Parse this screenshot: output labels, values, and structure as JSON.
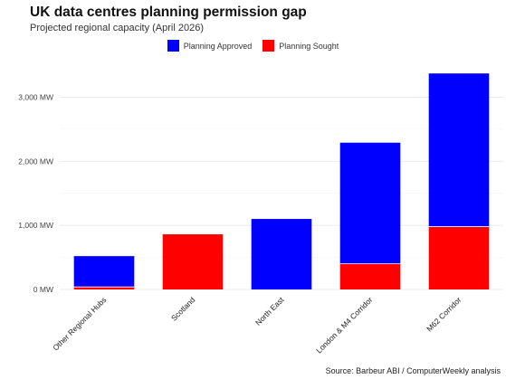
{
  "chart_data": {
    "type": "bar",
    "stacked": true,
    "title": "UK data centres planning permission gap",
    "subtitle": "Projected regional capacity (April 2026)",
    "source": "Source: Barbeur ABI / ComputerWeekly analysis",
    "categories": [
      "Other Regional Hubs",
      "Scotland",
      "North East",
      "London & M4 Corridor",
      "M62 Corridor"
    ],
    "series": [
      {
        "name": "Planning Sought",
        "color": "#ff0000",
        "values": [
          40,
          860,
          0,
          400,
          980
        ]
      },
      {
        "name": "Planning Approved",
        "color": "#0000ff",
        "values": [
          480,
          0,
          1100,
          1890,
          2390
        ]
      }
    ],
    "legend_order": [
      "Planning Approved",
      "Planning Sought"
    ],
    "y_ticks": [
      0,
      1000,
      2000,
      3000
    ],
    "y_tick_labels": [
      "0 MW",
      "1,000 MW",
      "2,000 MW",
      "3,000 MW"
    ],
    "ylim": [
      0,
      3500
    ],
    "xlabel": "",
    "ylabel": "",
    "grid": true,
    "legend_position": "top"
  }
}
